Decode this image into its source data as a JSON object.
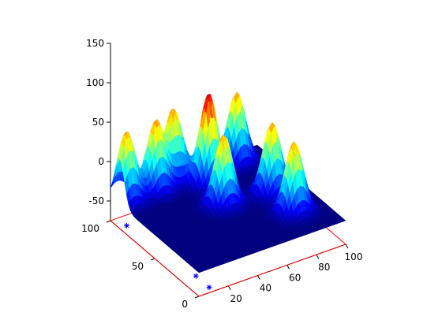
{
  "chart_data": {
    "type": "surface3d",
    "title": "",
    "xlabel": "",
    "ylabel": "",
    "zlabel": "",
    "xlim": [
      0,
      100
    ],
    "ylim": [
      0,
      100
    ],
    "zlim": [
      -75,
      150
    ],
    "grid": false,
    "legend": "none",
    "colormap": "jet",
    "x_ticks": [
      "20",
      "40",
      "60",
      "80",
      "100"
    ],
    "y_ticks": [
      "0",
      "50",
      "100"
    ],
    "z_ticks": [
      "150",
      "100",
      "50",
      "0",
      "-50"
    ],
    "baseline_z": -45,
    "floor_z": -75,
    "peaks": [
      {
        "x": 5,
        "y": 90,
        "height": 90
      },
      {
        "x": 25,
        "y": 90,
        "height": 90
      },
      {
        "x": 40,
        "y": 95,
        "height": 90
      },
      {
        "x": 55,
        "y": 80,
        "height": 115
      },
      {
        "x": 50,
        "y": 55,
        "height": 90
      },
      {
        "x": 80,
        "y": 90,
        "height": 90
      },
      {
        "x": 80,
        "y": 50,
        "height": 90
      },
      {
        "x": 80,
        "y": 25,
        "height": 90
      }
    ],
    "scatter_points": [
      {
        "x": 5,
        "y": 90
      },
      {
        "x": 25,
        "y": 90
      },
      {
        "x": 40,
        "y": 95
      },
      {
        "x": 50,
        "y": 55
      },
      {
        "x": 55,
        "y": 80
      },
      {
        "x": 80,
        "y": 90
      },
      {
        "x": 80,
        "y": 50
      },
      {
        "x": 80,
        "y": 25
      },
      {
        "x": 30,
        "y": 75
      },
      {
        "x": 90,
        "y": 55
      },
      {
        "x": 10,
        "y": 20
      },
      {
        "x": 10,
        "y": 5
      }
    ],
    "colors": {
      "scatter_marker": "#0000ff",
      "floor_rect": "#ff0000",
      "axis": "#000000",
      "background": "#ffffff"
    }
  }
}
